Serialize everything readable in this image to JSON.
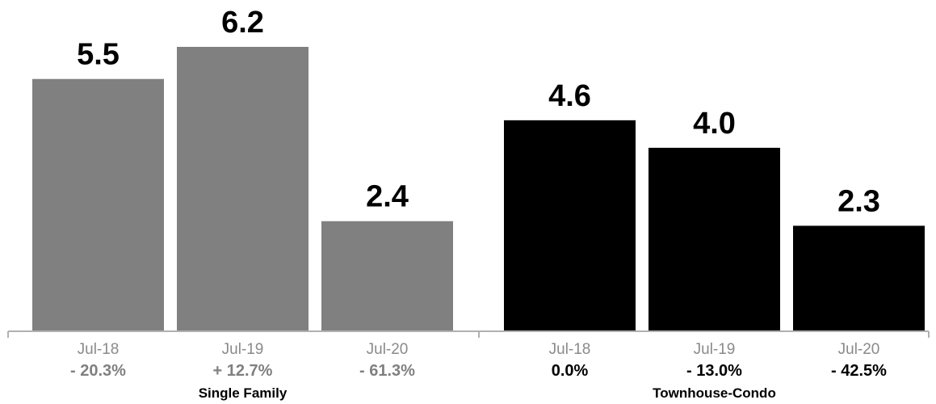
{
  "chart_data": {
    "type": "bar",
    "ylim": [
      0,
      6.2
    ],
    "grid": false,
    "groups": [
      {
        "name": "Single Family",
        "color": "#808080",
        "change_color": "#808080",
        "bars": [
          {
            "date": "Jul-18",
            "value": 5.5,
            "value_label": "5.5",
            "change": "- 20.3%"
          },
          {
            "date": "Jul-19",
            "value": 6.2,
            "value_label": "6.2",
            "change": "+ 12.7%"
          },
          {
            "date": "Jul-20",
            "value": 2.4,
            "value_label": "2.4",
            "change": "- 61.3%"
          }
        ]
      },
      {
        "name": "Townhouse-Condo",
        "color": "#000000",
        "change_color": "#000000",
        "bars": [
          {
            "date": "Jul-18",
            "value": 4.6,
            "value_label": "4.6",
            "change": "0.0%"
          },
          {
            "date": "Jul-19",
            "value": 4.0,
            "value_label": "4.0",
            "change": "- 13.0%"
          },
          {
            "date": "Jul-20",
            "value": 2.3,
            "value_label": "2.3",
            "change": "- 42.5%"
          }
        ]
      }
    ]
  }
}
